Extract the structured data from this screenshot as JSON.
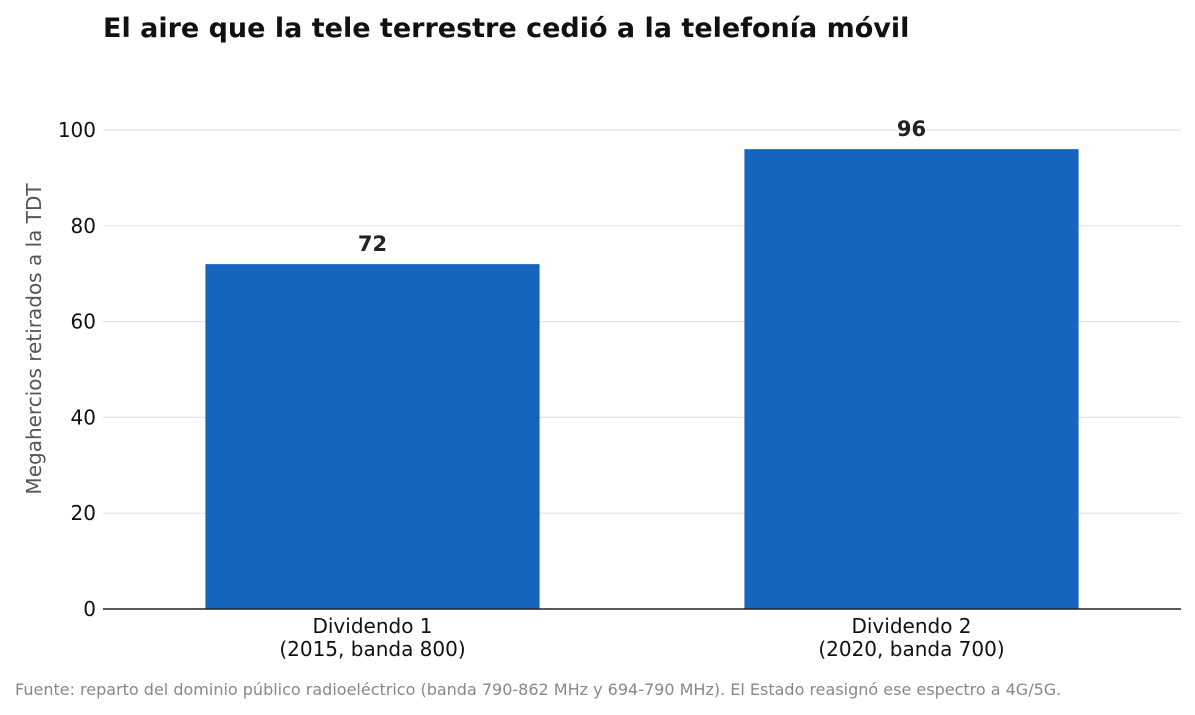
{
  "title": "El aire que la tele terrestre cedió a la telefonía móvil",
  "source_note": "Fuente: reparto del dominio público radioeléctrico (banda 790-862 MHz y 694-790 MHz). El Estado reasignó ese espectro a 4G/5G.",
  "colors": {
    "bar": "#1764bf",
    "grid": "#e3e3e3",
    "axis": "#222222"
  },
  "chart_data": {
    "type": "bar",
    "categories": [
      [
        "Dividendo 1",
        "(2015, banda 800)"
      ],
      [
        "Dividendo 2",
        "(2020, banda 700)"
      ]
    ],
    "values": [
      72,
      96
    ],
    "data_labels": [
      "72",
      "96"
    ],
    "ylabel": "Megahercios retirados a la TDT",
    "xlabel": "",
    "ylim": [
      0,
      100
    ],
    "yticks": [
      0,
      20,
      40,
      60,
      80,
      100
    ],
    "grid": true,
    "legend": "none"
  }
}
